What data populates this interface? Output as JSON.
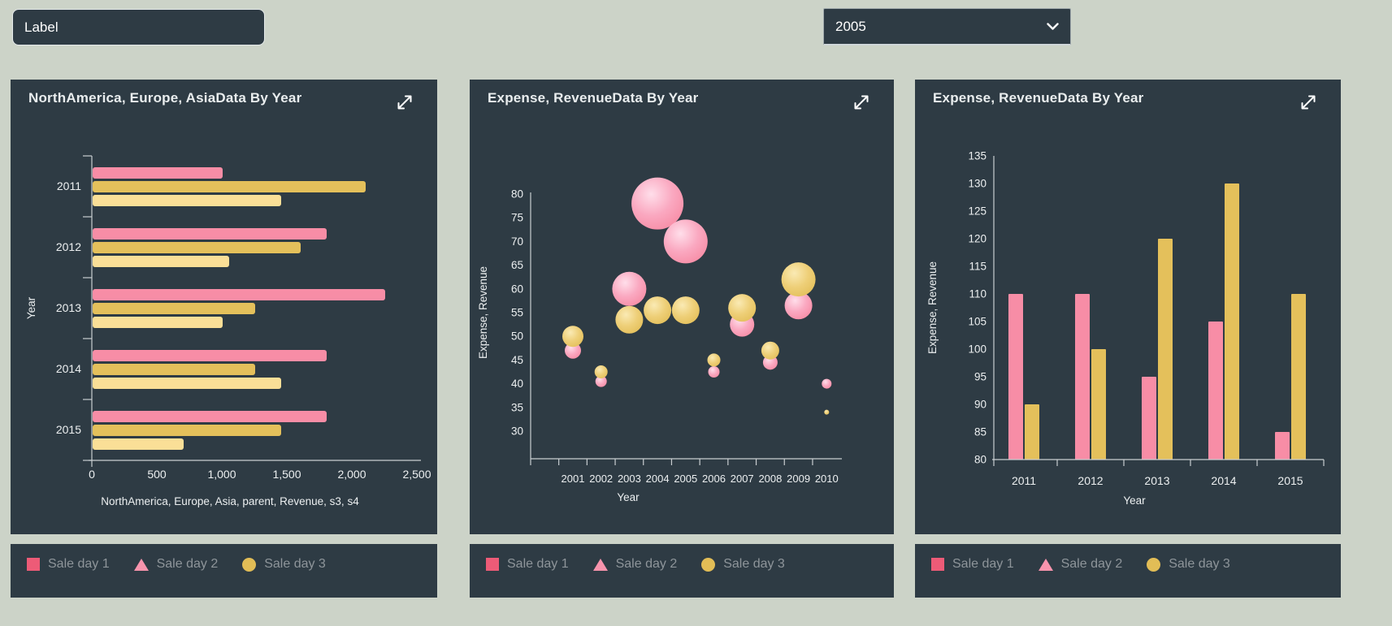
{
  "page": {
    "background_color": "#ccd3c8",
    "panel_color": "#2e3b44"
  },
  "toolbar": {
    "label_input": {
      "value": "Label"
    },
    "year_select": {
      "value": "2005"
    }
  },
  "legend": {
    "items": [
      {
        "label": "Sale day 1",
        "marker": "square",
        "color": "#ed5b77"
      },
      {
        "label": "Sale day 2",
        "marker": "triangle",
        "color": "#f894ad"
      },
      {
        "label": "Sale day 3",
        "marker": "circle",
        "color": "#e2bd56"
      }
    ]
  },
  "chart_data": [
    {
      "type": "bar",
      "orientation": "horizontal",
      "title": "NorthAmerica, Europe, AsiaData By Year",
      "xlabel": "NorthAmerica, Europe, Asia, parent, Revenue, s3, s4",
      "ylabel": "Year",
      "categories": [
        "2011",
        "2012",
        "2013",
        "2014",
        "2015"
      ],
      "xlim": [
        0,
        2500
      ],
      "xticks": [
        0,
        500,
        1000,
        1500,
        2000,
        2500
      ],
      "grid": false,
      "series": [
        {
          "name": "Sale day 1",
          "color": "#f78da6",
          "values": [
            1000,
            1800,
            2250,
            1800,
            1800
          ]
        },
        {
          "name": "Sale day 2",
          "color": "#e4c05b",
          "values": [
            2100,
            1600,
            1250,
            1250,
            1450
          ]
        },
        {
          "name": "Sale day 3",
          "color": "#fadf97",
          "values": [
            1450,
            1050,
            1000,
            1450,
            700
          ]
        }
      ]
    },
    {
      "type": "scatter",
      "subtype": "bubble",
      "title": "Expense, RevenueData By Year",
      "xlabel": "Year",
      "ylabel": "Expense, Revenue",
      "xticks": [
        2001,
        2002,
        2003,
        2004,
        2005,
        2006,
        2007,
        2008,
        2009,
        2010
      ],
      "ylim": [
        30,
        80
      ],
      "yticks": [
        30,
        35,
        40,
        45,
        50,
        55,
        60,
        65,
        70,
        75,
        80
      ],
      "grid": false,
      "point_format": [
        "year",
        "value",
        "bubble_radius_px"
      ],
      "series": [
        {
          "name": "Sale day 2",
          "gradient": [
            "#ffdeea",
            "#faa8c0",
            "#f78da6"
          ],
          "points": [
            [
              2001,
              47,
              10
            ],
            [
              2002,
              40.5,
              7
            ],
            [
              2003,
              60,
              21
            ],
            [
              2004,
              78,
              32
            ],
            [
              2005,
              70,
              27
            ],
            [
              2006,
              42.5,
              7
            ],
            [
              2007,
              52.5,
              15
            ],
            [
              2008,
              44.5,
              9
            ],
            [
              2009,
              56.5,
              17
            ],
            [
              2010,
              40,
              6
            ]
          ]
        },
        {
          "name": "Sale day 3",
          "gradient": [
            "#faeab4",
            "#eecf78",
            "#e4c05b"
          ],
          "points": [
            [
              2001,
              50,
              13
            ],
            [
              2002,
              42.5,
              8
            ],
            [
              2003,
              53.5,
              17
            ],
            [
              2004,
              55.5,
              17
            ],
            [
              2005,
              55.5,
              17
            ],
            [
              2006,
              45,
              8
            ],
            [
              2007,
              56,
              17
            ],
            [
              2008,
              47,
              11
            ],
            [
              2009,
              62,
              21
            ],
            [
              2010,
              34,
              3
            ]
          ]
        }
      ]
    },
    {
      "type": "bar",
      "orientation": "vertical",
      "title": "Expense, RevenueData By Year",
      "xlabel": "Year",
      "ylabel": "Expense, Revenue",
      "categories": [
        "2011",
        "2012",
        "2013",
        "2014",
        "2015"
      ],
      "ylim": [
        80,
        135
      ],
      "yticks": [
        80,
        85,
        90,
        95,
        100,
        105,
        110,
        115,
        120,
        125,
        130,
        135
      ],
      "grid": false,
      "series": [
        {
          "name": "Sale day 1",
          "color": "#f78da6",
          "values": [
            110,
            110,
            95,
            105,
            85
          ]
        },
        {
          "name": "Sale day 3",
          "color": "#e4c05b",
          "values": [
            90,
            100,
            120,
            130,
            110
          ]
        }
      ]
    }
  ]
}
